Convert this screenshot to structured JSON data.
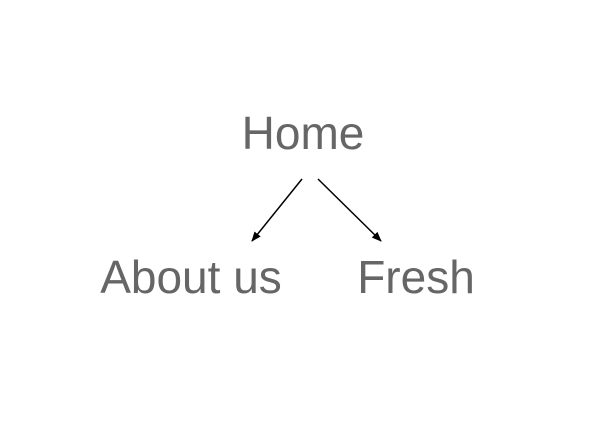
{
  "diagram": {
    "nodes": [
      {
        "id": "home",
        "label": "Home"
      },
      {
        "id": "about",
        "label": "About us"
      },
      {
        "id": "fresh",
        "label": "Fresh"
      }
    ],
    "edges": [
      {
        "from": "home",
        "to": "about"
      },
      {
        "from": "home",
        "to": "fresh"
      }
    ],
    "colors": {
      "node_text": "#666666",
      "edge": "#000000",
      "background": "#ffffff"
    }
  }
}
